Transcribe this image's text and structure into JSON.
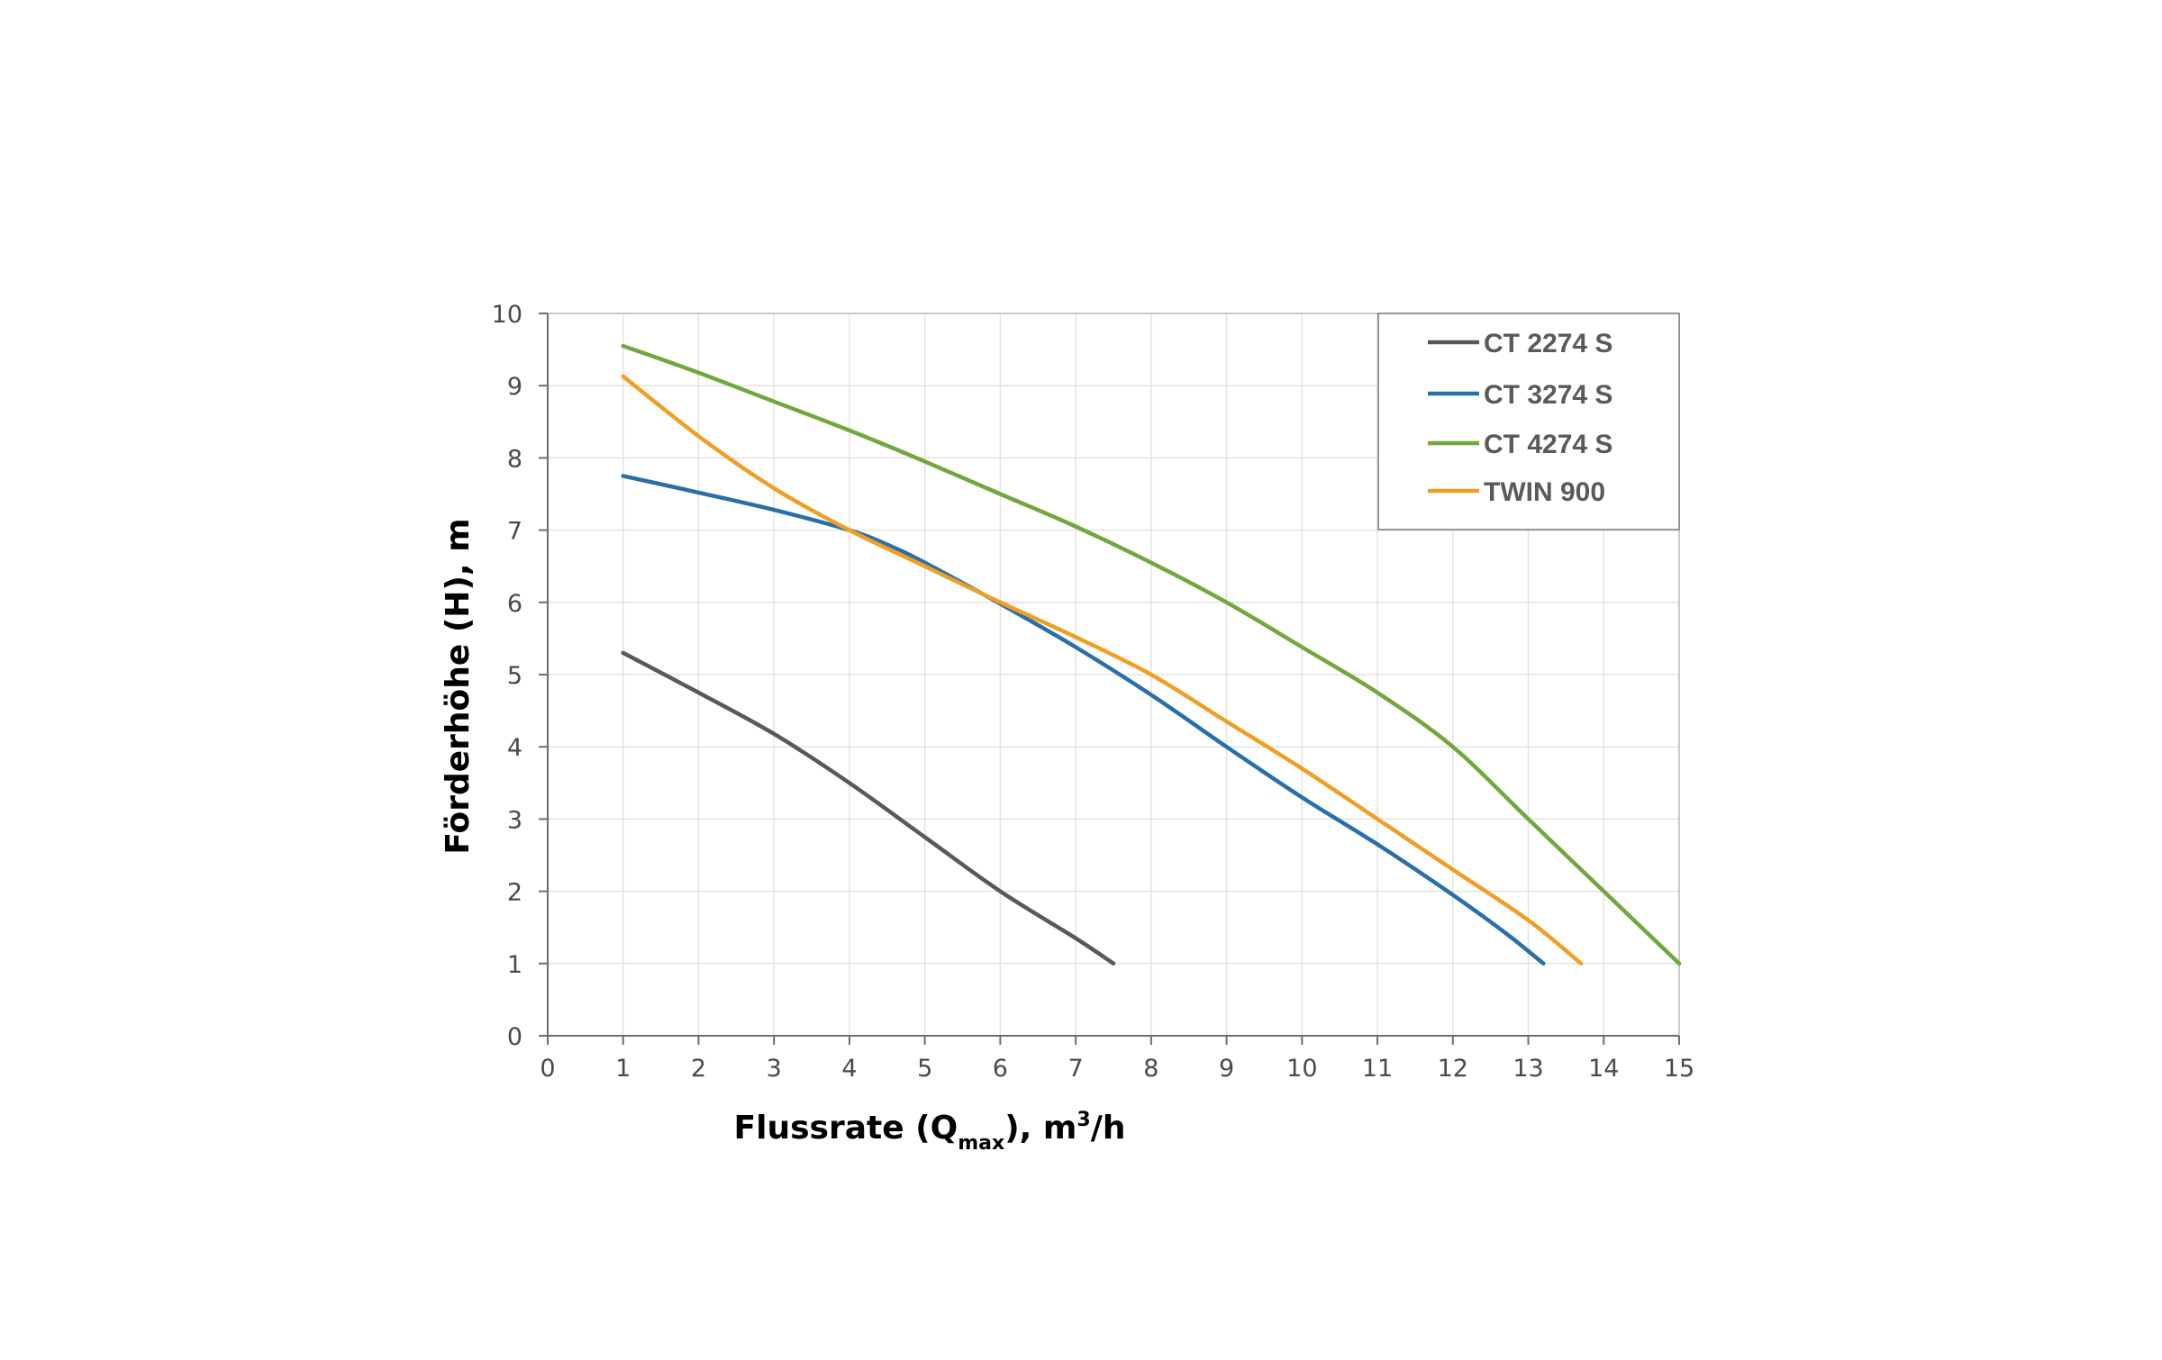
{
  "chart_data": {
    "type": "line",
    "xlabel": {
      "main": "Flussrate (Q",
      "sub": "max",
      "mid": "), m",
      "sup": "3",
      "end": "/h"
    },
    "ylabel": "Förderhöhe (H), m",
    "xlim": [
      0,
      15
    ],
    "ylim": [
      0,
      10
    ],
    "xticks": [
      "0",
      "1",
      "2",
      "3",
      "4",
      "5",
      "6",
      "7",
      "8",
      "9",
      "10",
      "11",
      "12",
      "13",
      "14",
      "15"
    ],
    "yticks": [
      "0",
      "1",
      "2",
      "3",
      "4",
      "5",
      "6",
      "7",
      "8",
      "9",
      "10"
    ],
    "grid": true,
    "legend_position": "top-right",
    "series": [
      {
        "name": "CT 2274 S",
        "color": "#58595b",
        "points": [
          [
            1,
            5.3
          ],
          [
            2,
            4.75
          ],
          [
            3,
            4.18
          ],
          [
            4,
            3.5
          ],
          [
            5,
            2.75
          ],
          [
            6,
            2.0
          ],
          [
            7,
            1.35
          ],
          [
            7.5,
            1.0
          ]
        ]
      },
      {
        "name": "CT 3274 S",
        "color": "#2a6fa8",
        "points": [
          [
            1,
            7.75
          ],
          [
            2,
            7.52
          ],
          [
            3,
            7.28
          ],
          [
            4,
            7.0
          ],
          [
            4.5,
            6.8
          ],
          [
            5,
            6.55
          ],
          [
            6,
            5.98
          ],
          [
            7,
            5.38
          ],
          [
            8,
            4.72
          ],
          [
            9,
            4.0
          ],
          [
            10,
            3.3
          ],
          [
            11,
            2.65
          ],
          [
            12,
            1.95
          ],
          [
            12.7,
            1.42
          ],
          [
            13.2,
            1.0
          ]
        ]
      },
      {
        "name": "CT 4274 S",
        "color": "#72a73d",
        "points": [
          [
            1,
            9.55
          ],
          [
            2,
            9.18
          ],
          [
            3,
            8.78
          ],
          [
            4,
            8.38
          ],
          [
            5,
            7.95
          ],
          [
            6,
            7.5
          ],
          [
            7,
            7.05
          ],
          [
            8,
            6.55
          ],
          [
            9,
            6.0
          ],
          [
            10,
            5.38
          ],
          [
            11,
            4.75
          ],
          [
            12,
            4.0
          ],
          [
            13,
            3.0
          ],
          [
            14,
            2.0
          ],
          [
            15,
            1.0
          ]
        ]
      },
      {
        "name": "TWIN 900",
        "color": "#ef9f24",
        "points": [
          [
            1,
            9.13
          ],
          [
            2,
            8.3
          ],
          [
            3,
            7.58
          ],
          [
            4,
            7.0
          ],
          [
            5,
            6.5
          ],
          [
            6,
            6.0
          ],
          [
            7,
            5.52
          ],
          [
            8,
            5.0
          ],
          [
            9,
            4.35
          ],
          [
            10,
            3.7
          ],
          [
            11,
            3.0
          ],
          [
            12,
            2.3
          ],
          [
            13,
            1.6
          ],
          [
            13.7,
            1.0
          ]
        ]
      }
    ]
  }
}
